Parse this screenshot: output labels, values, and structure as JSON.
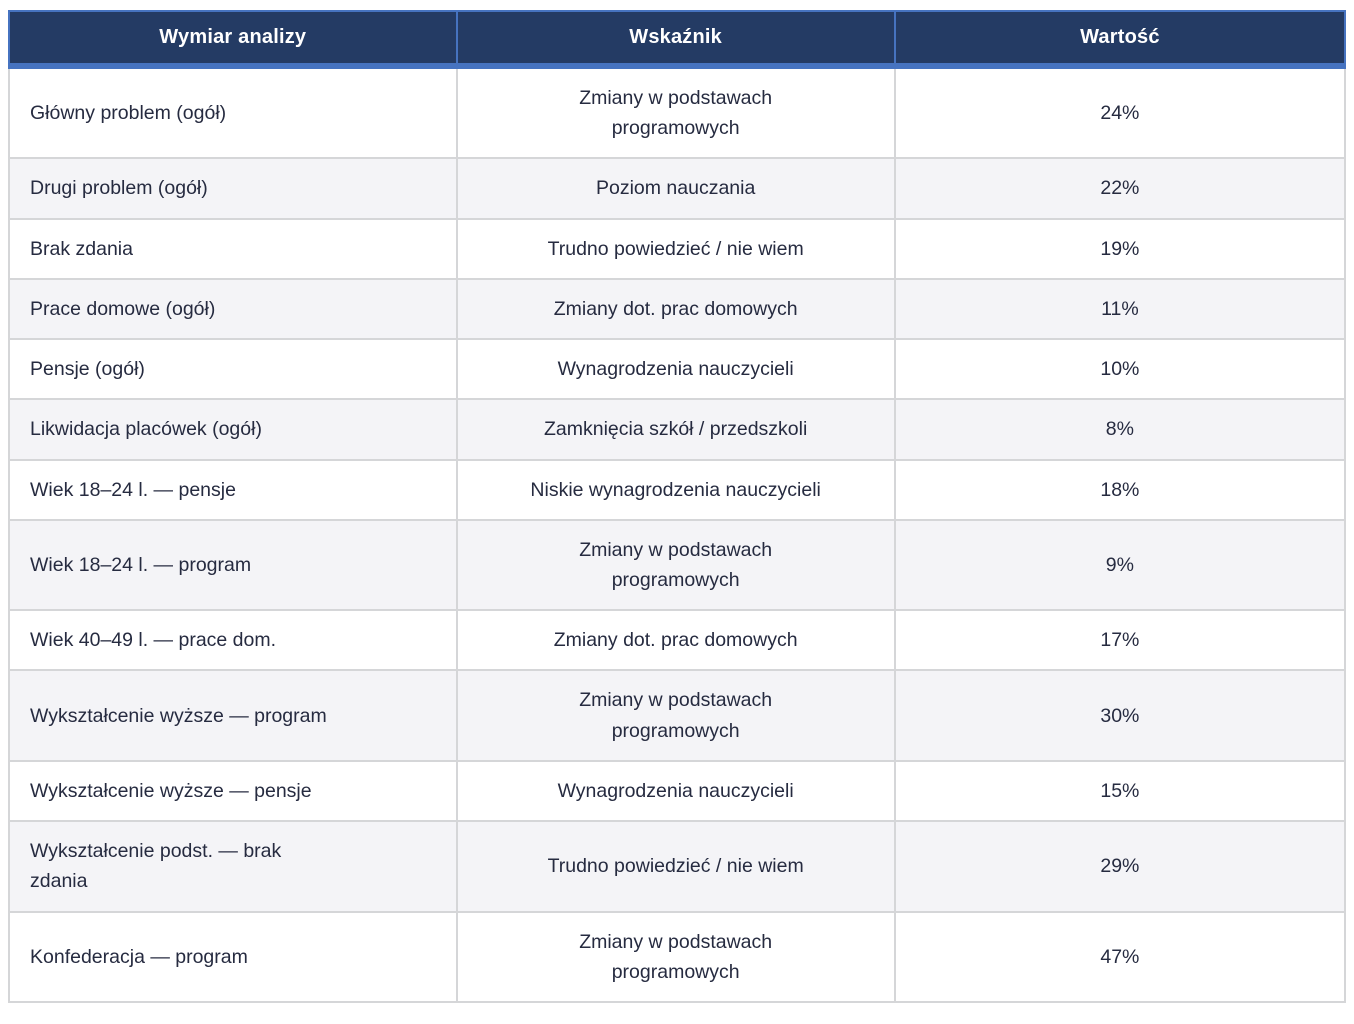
{
  "chart_data": {
    "type": "table",
    "title": "",
    "columns": [
      "Wymiar analizy",
      "Wskaźnik",
      "Wartość"
    ],
    "rows": [
      {
        "dimension": "Główny problem (ogół)",
        "indicator": "Zmiany w podstawach\nprogramowych",
        "value": "24%"
      },
      {
        "dimension": "Drugi problem (ogół)",
        "indicator": "Poziom nauczania",
        "value": "22%"
      },
      {
        "dimension": "Brak zdania",
        "indicator": "Trudno powiedzieć / nie wiem",
        "value": "19%"
      },
      {
        "dimension": "Prace domowe (ogół)",
        "indicator": "Zmiany dot. prac domowych",
        "value": "11%"
      },
      {
        "dimension": "Pensje (ogół)",
        "indicator": "Wynagrodzenia nauczycieli",
        "value": "10%"
      },
      {
        "dimension": "Likwidacja placówek (ogół)",
        "indicator": "Zamknięcia szkół / przedszkoli",
        "value": "8%"
      },
      {
        "dimension": "Wiek 18–24 l. — pensje",
        "indicator": "Niskie wynagrodzenia nauczycieli",
        "value": "18%"
      },
      {
        "dimension": "Wiek 18–24 l. — program",
        "indicator": "Zmiany w podstawach\nprogramowych",
        "value": "9%"
      },
      {
        "dimension": "Wiek 40–49 l. — prace dom.",
        "indicator": "Zmiany dot. prac domowych",
        "value": "17%"
      },
      {
        "dimension": "Wykształcenie wyższe — program",
        "indicator": "Zmiany w podstawach\nprogramowych",
        "value": "30%"
      },
      {
        "dimension": "Wykształcenie wyższe — pensje",
        "indicator": "Wynagrodzenia nauczycieli",
        "value": "15%"
      },
      {
        "dimension": "Wykształcenie podst. — brak\nzdania",
        "indicator": "Trudno powiedzieć / nie wiem",
        "value": "29%"
      },
      {
        "dimension": "Konfederacja — program",
        "indicator": "Zmiany w podstawach\nprogramowych",
        "value": "47%"
      }
    ]
  },
  "colors": {
    "header_bg": "#243B64",
    "header_text": "#FFFFFF",
    "accent_border": "#4673C0",
    "row_alt_bg": "#F4F4F7",
    "row_bg": "#FFFFFF",
    "grid_border": "#D5D6D8",
    "body_text": "#262B40"
  }
}
